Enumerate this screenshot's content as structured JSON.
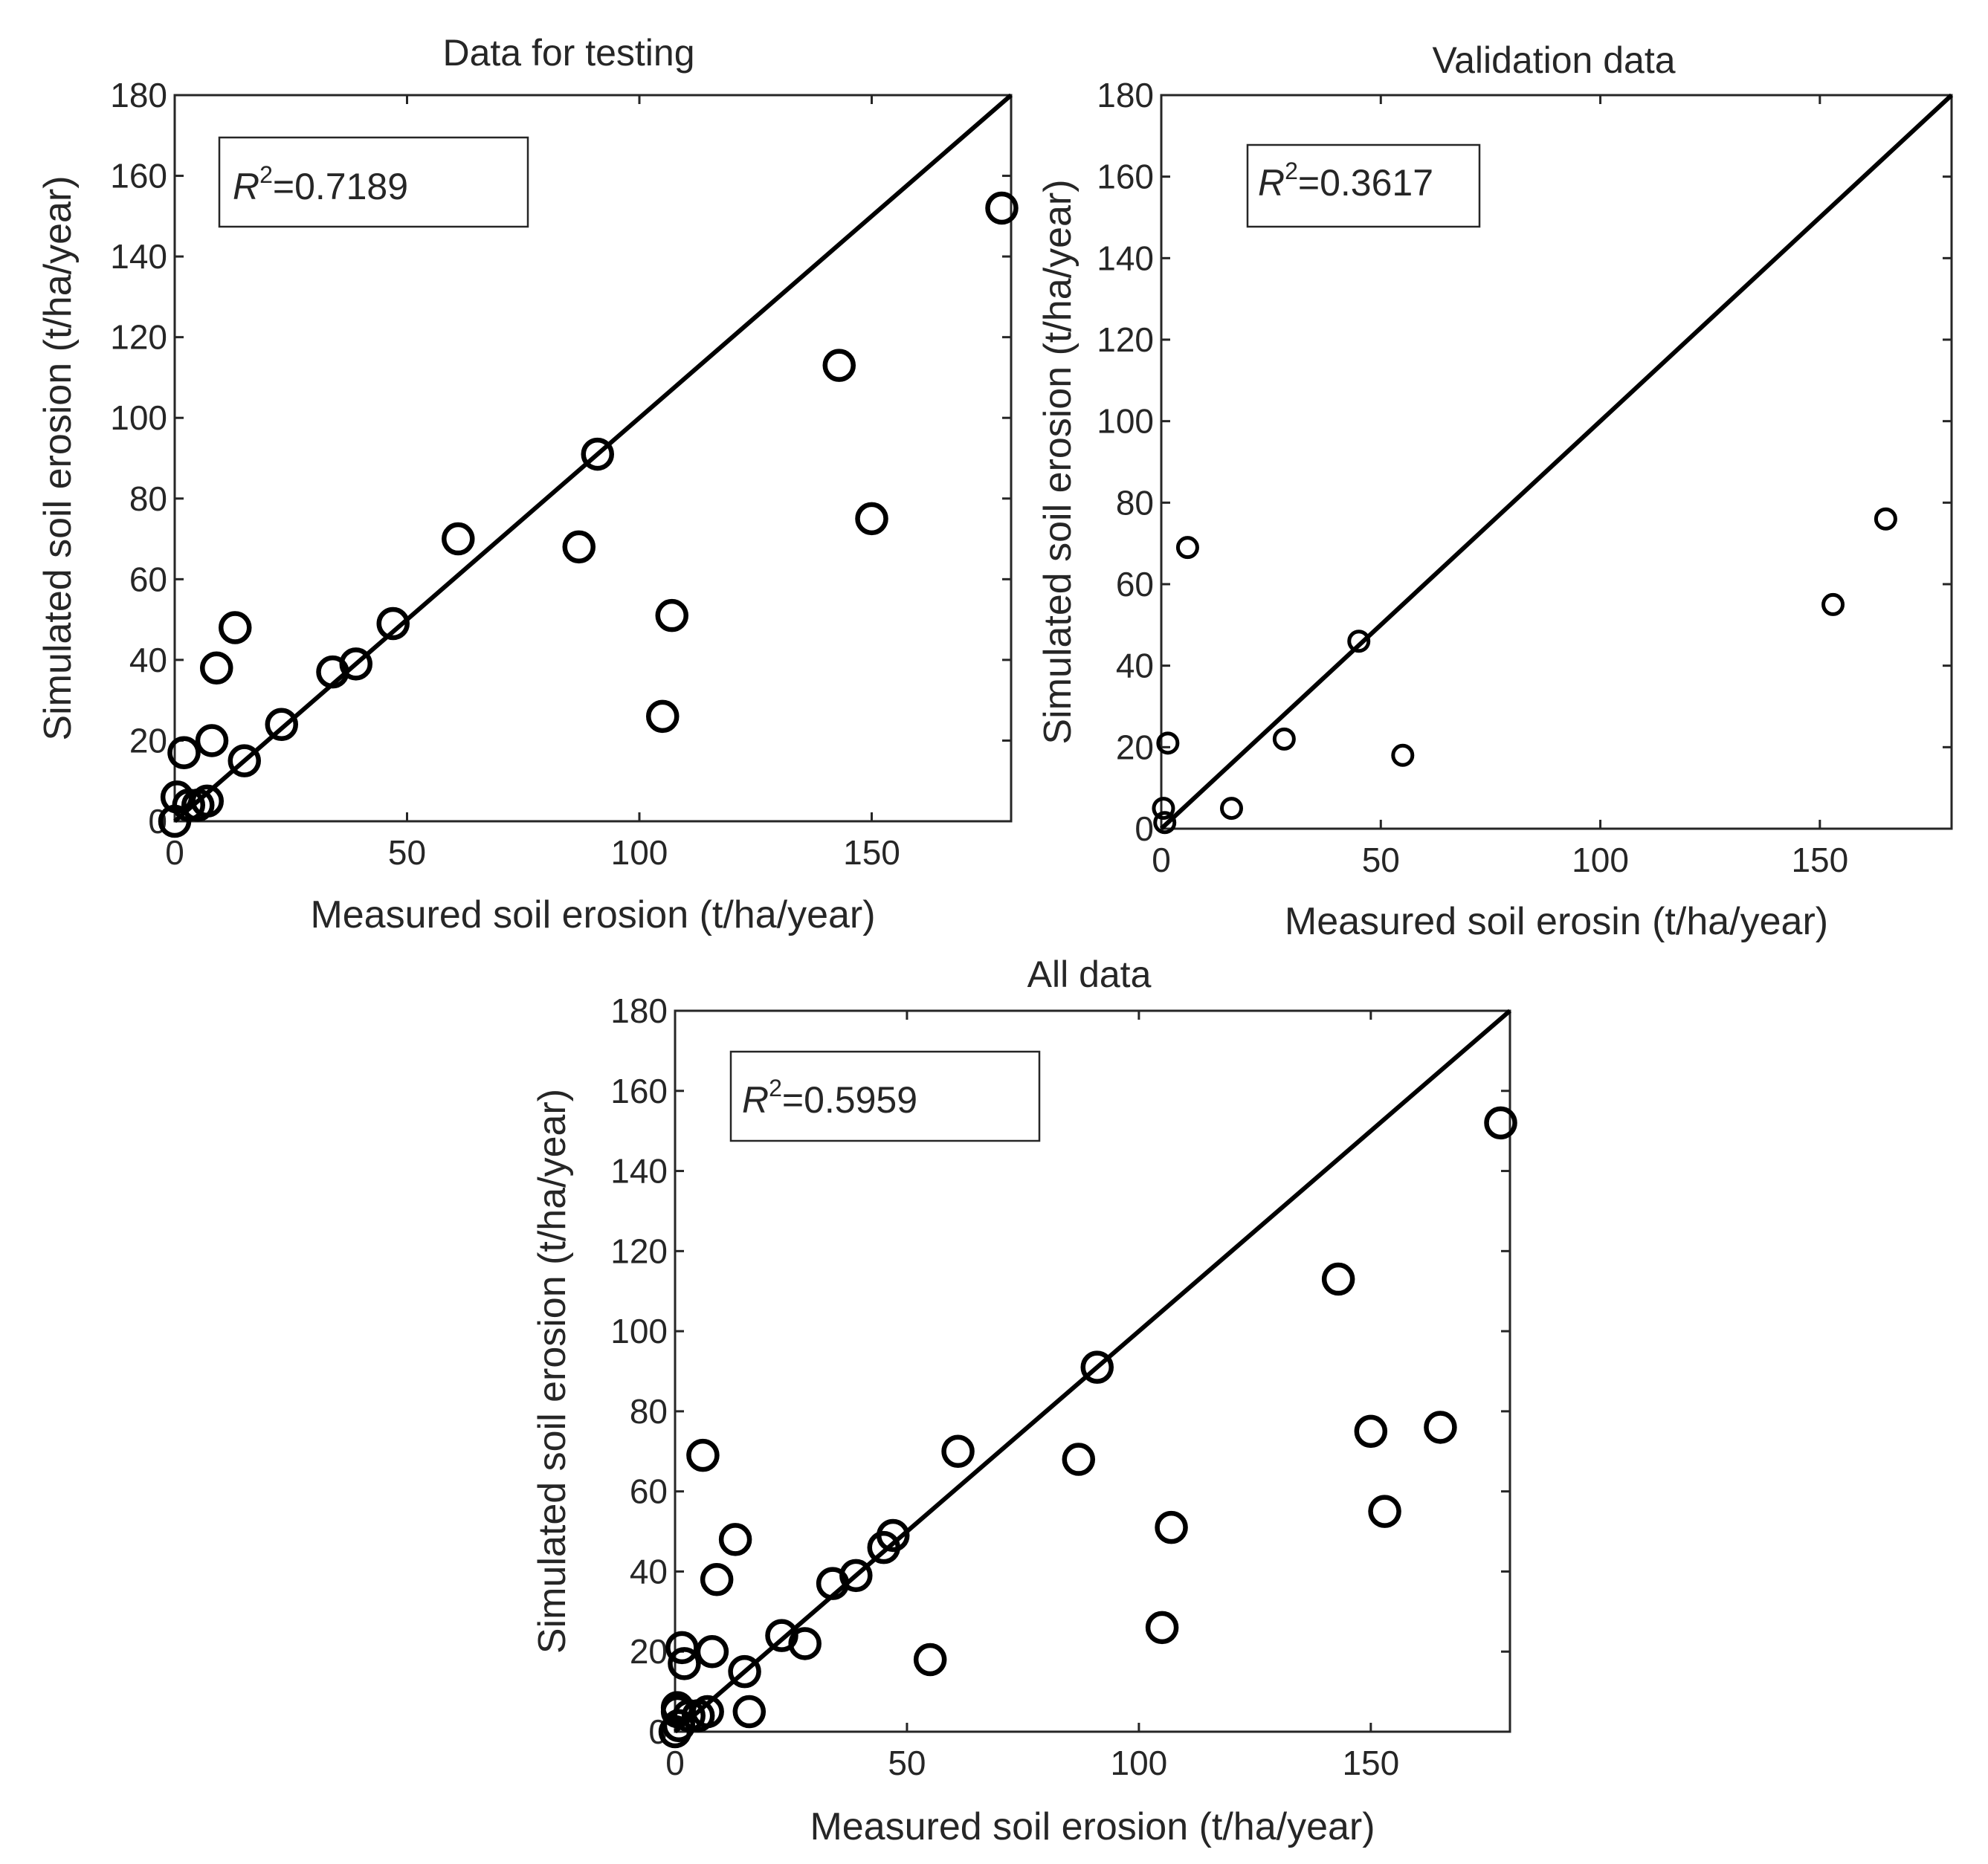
{
  "chart_data": [
    {
      "id": "testing",
      "type": "scatter",
      "title": "Data for testing",
      "xlabel": "Measured soil erosion (t/ha/year)",
      "ylabel": "Simulated soil erosion (t/ha/year)",
      "xlim": [
        0,
        180
      ],
      "ylim": [
        0,
        180
      ],
      "xticks": [
        0,
        50,
        100,
        150
      ],
      "yticks": [
        0,
        20,
        40,
        60,
        80,
        100,
        120,
        140,
        160,
        180
      ],
      "reference_line": "1:1",
      "annotation": {
        "symbol": "R",
        "exponent": "2",
        "value": "=0.7189"
      },
      "points": [
        [
          0.5,
          6
        ],
        [
          0,
          0
        ],
        [
          2,
          17
        ],
        [
          3,
          4
        ],
        [
          5,
          4
        ],
        [
          7,
          5
        ],
        [
          8,
          20
        ],
        [
          9,
          38
        ],
        [
          13,
          48
        ],
        [
          15,
          15
        ],
        [
          23,
          24
        ],
        [
          34,
          37
        ],
        [
          39,
          39
        ],
        [
          47,
          49
        ],
        [
          61,
          70
        ],
        [
          87,
          68
        ],
        [
          91,
          91
        ],
        [
          105,
          26
        ],
        [
          107,
          51
        ],
        [
          143,
          113
        ],
        [
          150,
          75
        ],
        [
          178,
          152
        ]
      ]
    },
    {
      "id": "validation",
      "type": "scatter",
      "title": "Validation data",
      "xlabel": "Measured soil erosin (t/ha/year)",
      "ylabel": "Simulated soil erosion (t/ha/year)",
      "xlim": [
        0,
        180
      ],
      "ylim": [
        0,
        180
      ],
      "xticks": [
        0,
        50,
        100,
        150
      ],
      "yticks": [
        0,
        20,
        40,
        60,
        80,
        100,
        120,
        140,
        160,
        180
      ],
      "reference_line": "1:1",
      "annotation": {
        "symbol": "R",
        "exponent": "2",
        "value": "=0.3617"
      },
      "points": [
        [
          0.5,
          5
        ],
        [
          0.8,
          1.5
        ],
        [
          1.5,
          21
        ],
        [
          6,
          69
        ],
        [
          16,
          5
        ],
        [
          28,
          22
        ],
        [
          45,
          46
        ],
        [
          55,
          18
        ],
        [
          153,
          55
        ],
        [
          165,
          76
        ]
      ]
    },
    {
      "id": "all",
      "type": "scatter",
      "title": "All data",
      "xlabel": "Measured soil erosion (t/ha/year)",
      "ylabel": "Simulated soil erosion (t/ha/year)",
      "xlim": [
        0,
        180
      ],
      "ylim": [
        0,
        180
      ],
      "xticks": [
        0,
        50,
        100,
        150
      ],
      "yticks": [
        0,
        20,
        40,
        60,
        80,
        100,
        120,
        140,
        160,
        180
      ],
      "reference_line": "1:1",
      "annotation": {
        "symbol": "R",
        "exponent": "2",
        "value": "=0.5959"
      },
      "points": [
        [
          0.5,
          6
        ],
        [
          0,
          0
        ],
        [
          2,
          17
        ],
        [
          3,
          4
        ],
        [
          5,
          4
        ],
        [
          7,
          5
        ],
        [
          8,
          20
        ],
        [
          9,
          38
        ],
        [
          13,
          48
        ],
        [
          15,
          15
        ],
        [
          23,
          24
        ],
        [
          34,
          37
        ],
        [
          39,
          39
        ],
        [
          47,
          49
        ],
        [
          61,
          70
        ],
        [
          87,
          68
        ],
        [
          91,
          91
        ],
        [
          105,
          26
        ],
        [
          107,
          51
        ],
        [
          143,
          113
        ],
        [
          150,
          75
        ],
        [
          178,
          152
        ],
        [
          0.5,
          5
        ],
        [
          0.8,
          1.5
        ],
        [
          1.5,
          21
        ],
        [
          6,
          69
        ],
        [
          16,
          5
        ],
        [
          28,
          22
        ],
        [
          45,
          46
        ],
        [
          55,
          18
        ],
        [
          153,
          55
        ],
        [
          165,
          76
        ]
      ]
    }
  ]
}
